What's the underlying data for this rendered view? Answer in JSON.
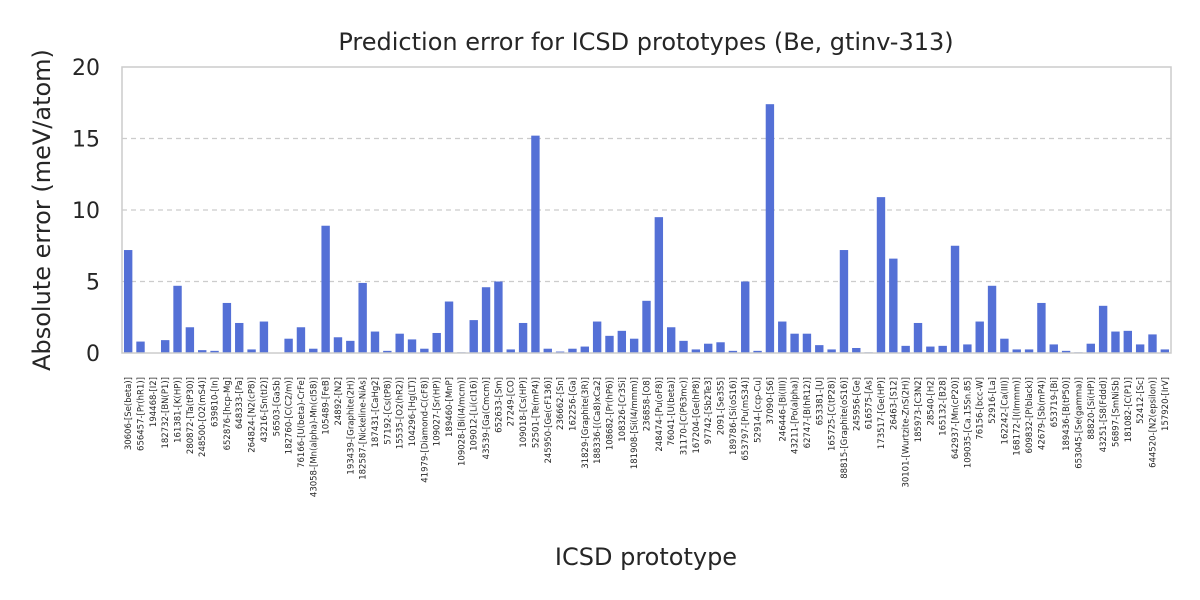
{
  "chart_data": {
    "type": "bar",
    "title": "Prediction error for ICSD prototypes (Be, gtinv-313)",
    "xlabel": "ICSD prototype",
    "ylabel": "Absolute error (meV/atom)",
    "ylim": [
      0,
      20
    ],
    "yticks": [
      0,
      5,
      10,
      15,
      20
    ],
    "grid": "y-dashed",
    "bar_color": "#5470d6",
    "categories": [
      "30606-[Se(beta)]",
      "656457-[Pr(hR1)]",
      "194468-[I2]",
      "182732-[BN(P1)]",
      "161381-[K(HP)]",
      "280872-[Ta(tP30)]",
      "248500-[O2(mS4)]",
      "639810-[In]",
      "652876-[hcp-Mg]",
      "648333-[Pa]",
      "264824-[N2(cP8)]",
      "43216-[Sn(tI2)]",
      "56503-[GaSb]",
      "182760-[C(C2/m)]",
      "76166-[U(beta)-CrFe]",
      "43058-[Mn(alpha)-Mn(cI58)]",
      "105489-[FeB]",
      "24892-[N2]",
      "193439-[Graphite(2H)]",
      "182587-[Nickeline-NiAs]",
      "187431-[CaHg2]",
      "57192-[Cs(tP8)]",
      "15535-[O2(hR2)]",
      "104296-[Hg(LT)]",
      "41979-[Diamond-C(cF8)]",
      "109027-[Sr(HP)]",
      "189460-[MnP]",
      "109028-[Bi(I4/mcm)]",
      "109012-[Li(cI16)]",
      "43539-[Ga(Cmcm)]",
      "652633-[Sm]",
      "27249-[CO]",
      "109018-[Cs(HP)]",
      "52501-[Te(mP4)]",
      "245950-[Ge(cF136)]",
      "236662-[Sn]",
      "162256-[Ga]",
      "31829-[Graphite(3R)]",
      "188336-[(Ca8)xCa2]",
      "108682-[Pr(hP6)]",
      "108326-[Cr3Si]",
      "181908-[Si(I4/mmm)]",
      "236858-[O8]",
      "248474-[Pu(oF8)]",
      "76041-[U(beta)]",
      "31170-[C(P63mc)]",
      "167204-[Ge(hP8)]",
      "97742-[Sb2Te3]",
      "2091-[Se3S5]",
      "189786-[Si(oS16)]",
      "653797-[Pu(mS34)]",
      "52914-[ccp-Cu]",
      "37090-[S6]",
      "246446-[Bi(III)]",
      "43211-[Po(alpha)]",
      "62747-[B(hR12)]",
      "653381-[U]",
      "165725-[C(tP28)]",
      "88815-[Graphite(oS16)]",
      "245956-[Ge]",
      "616575-[As]",
      "173517-[Ge(HP)]",
      "26463-[S12]",
      "30101-[Wurtzite-ZnS(2H)]",
      "185973-[C3N2]",
      "28540-[H2]",
      "165132-[B28]",
      "642937-[Mn(cP20)]",
      "109035-[Ca.15Sn.85]",
      "76156-[bcc-W]",
      "52916-[La]",
      "162242-[Ca(III)]",
      "168172-[I(Immm)]",
      "609832-[P(black)]",
      "42679-[Sb(mP4)]",
      "653719-[Bi]",
      "189436-[B(tP50)]",
      "653045-[Se(gamma)]",
      "88820-[Si(HP)]",
      "43251-[S8(Fddd)]",
      "56897-[SmNiSb]",
      "181082-[C(P1)]",
      "52412-[Sc]",
      "644520-[N2(epsilon)]",
      "157920-[IrV]"
    ],
    "values": [
      7.2,
      0.8,
      0.0,
      0.9,
      4.7,
      1.8,
      0.2,
      0.15,
      3.5,
      2.1,
      0.25,
      2.2,
      0.0,
      1.0,
      1.8,
      0.3,
      8.9,
      1.1,
      0.85,
      4.9,
      1.5,
      0.15,
      1.35,
      0.95,
      0.3,
      1.4,
      3.6,
      0.05,
      2.3,
      4.6,
      5.0,
      0.25,
      2.1,
      15.2,
      0.3,
      0.1,
      0.3,
      0.45,
      2.2,
      1.2,
      1.55,
      1.0,
      3.65,
      9.5,
      1.8,
      0.85,
      0.25,
      0.65,
      0.75,
      0.15,
      5.0,
      0.15,
      17.4,
      2.2,
      1.35,
      1.35,
      0.55,
      0.25,
      7.2,
      0.35,
      0.05,
      10.9,
      6.6,
      0.5,
      2.1,
      0.45,
      0.5,
      7.5,
      0.6,
      2.2,
      4.7,
      1.0,
      0.25,
      0.25,
      3.5,
      0.6,
      0.15,
      0.05,
      0.65,
      3.3,
      1.5,
      1.55,
      0.6,
      1.3,
      0.25
    ]
  }
}
